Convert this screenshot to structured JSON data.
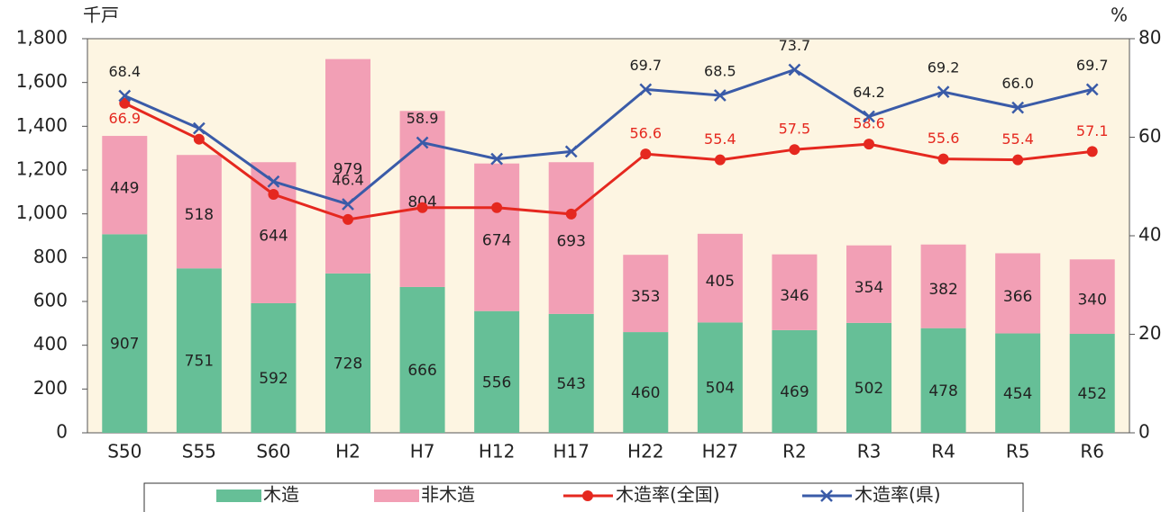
{
  "chart_data": {
    "type": "bar",
    "y_unit": "千戸",
    "y2_unit": "%",
    "categories": [
      "S50",
      "S55",
      "S60",
      "H2",
      "H7",
      "H12",
      "H17",
      "H22",
      "H27",
      "R2",
      "R3",
      "R4",
      "R5",
      "R6"
    ],
    "stacked": true,
    "series": [
      {
        "name": "木造",
        "color": "#66bf97",
        "values": [
          907,
          751,
          592,
          728,
          666,
          556,
          543,
          460,
          504,
          469,
          502,
          478,
          454,
          452
        ]
      },
      {
        "name": "非木造",
        "color": "#f29fb5",
        "values": [
          449,
          518,
          644,
          979,
          804,
          674,
          693,
          353,
          405,
          346,
          354,
          382,
          366,
          340
        ]
      },
      {
        "name": "木造率(全国)",
        "type": "line",
        "marker": "circle",
        "axis": "y2",
        "color": "#e5281f",
        "values": [
          66.9,
          59.6,
          48.4,
          43.3,
          45.7,
          45.7,
          44.4,
          56.6,
          55.4,
          57.5,
          58.6,
          55.6,
          55.4,
          57.1
        ],
        "value_labels": [
          "66.9",
          null,
          null,
          null,
          null,
          null,
          null,
          "56.6",
          "55.4",
          "57.5",
          "58.6",
          "55.6",
          "55.4",
          "57.1"
        ]
      },
      {
        "name": "木造率(県)",
        "type": "line",
        "marker": "x",
        "axis": "y2",
        "color": "#3a5ba8",
        "values": [
          68.4,
          61.8,
          51.0,
          46.4,
          58.9,
          55.6,
          57.1,
          69.7,
          68.5,
          73.7,
          64.2,
          69.2,
          66.0,
          69.7
        ],
        "value_labels": [
          "68.4",
          null,
          null,
          "46.4",
          "58.9",
          null,
          null,
          "69.7",
          "68.5",
          "73.7",
          "64.2",
          "69.2",
          "66.0",
          "69.7"
        ]
      }
    ],
    "ylim": [
      0,
      1800
    ],
    "yticks": [
      0,
      200,
      400,
      600,
      800,
      {
        "value": 1000,
        "label": "1,000"
      },
      {
        "value": 1200,
        "label": "1,200"
      },
      {
        "value": 1400,
        "label": "1,400"
      },
      {
        "value": 1600,
        "label": "1,600"
      },
      {
        "value": 1800,
        "label": "1,800"
      }
    ],
    "y2lim": [
      0,
      80
    ],
    "y2ticks": [
      0,
      20,
      40,
      60,
      80
    ]
  }
}
